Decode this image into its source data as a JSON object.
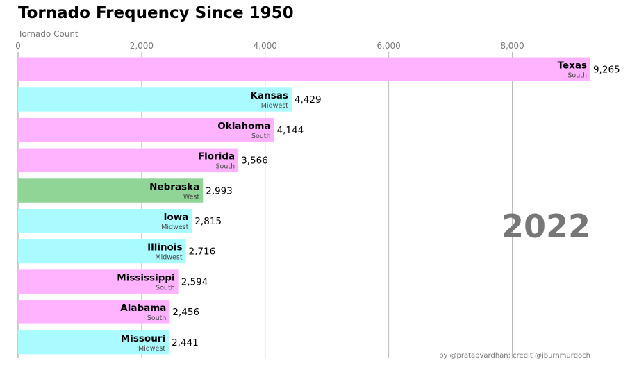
{
  "chart_data": {
    "type": "bar",
    "orientation": "horizontal",
    "title": "Tornado Frequency Since 1950",
    "xlabel": "Tornado Count",
    "ylabel": "",
    "xlim": [
      0,
      9265
    ],
    "xticks": [
      0,
      2000,
      4000,
      6000,
      8000
    ],
    "xtick_labels": [
      "0",
      "2,000",
      "4,000",
      "6,000",
      "8,000"
    ],
    "grid": "vertical",
    "year": "2022",
    "credit": "by @pratapvardhan; credit @jburnmurdoch",
    "group_colors": {
      "South": "#ffb3ff",
      "Midwest": "#aafbff",
      "West": "#90d595"
    },
    "bars": [
      {
        "name": "Texas",
        "group": "South",
        "value": 9265,
        "value_label": "9,265"
      },
      {
        "name": "Kansas",
        "group": "Midwest",
        "value": 4429,
        "value_label": "4,429"
      },
      {
        "name": "Oklahoma",
        "group": "South",
        "value": 4144,
        "value_label": "4,144"
      },
      {
        "name": "Florida",
        "group": "South",
        "value": 3566,
        "value_label": "3,566"
      },
      {
        "name": "Nebraska",
        "group": "West",
        "value": 2993,
        "value_label": "2,993"
      },
      {
        "name": "Iowa",
        "group": "Midwest",
        "value": 2815,
        "value_label": "2,815"
      },
      {
        "name": "Illinois",
        "group": "Midwest",
        "value": 2716,
        "value_label": "2,716"
      },
      {
        "name": "Mississippi",
        "group": "South",
        "value": 2594,
        "value_label": "2,594"
      },
      {
        "name": "Alabama",
        "group": "South",
        "value": 2456,
        "value_label": "2,456"
      },
      {
        "name": "Missouri",
        "group": "Midwest",
        "value": 2441,
        "value_label": "2,441"
      }
    ]
  }
}
